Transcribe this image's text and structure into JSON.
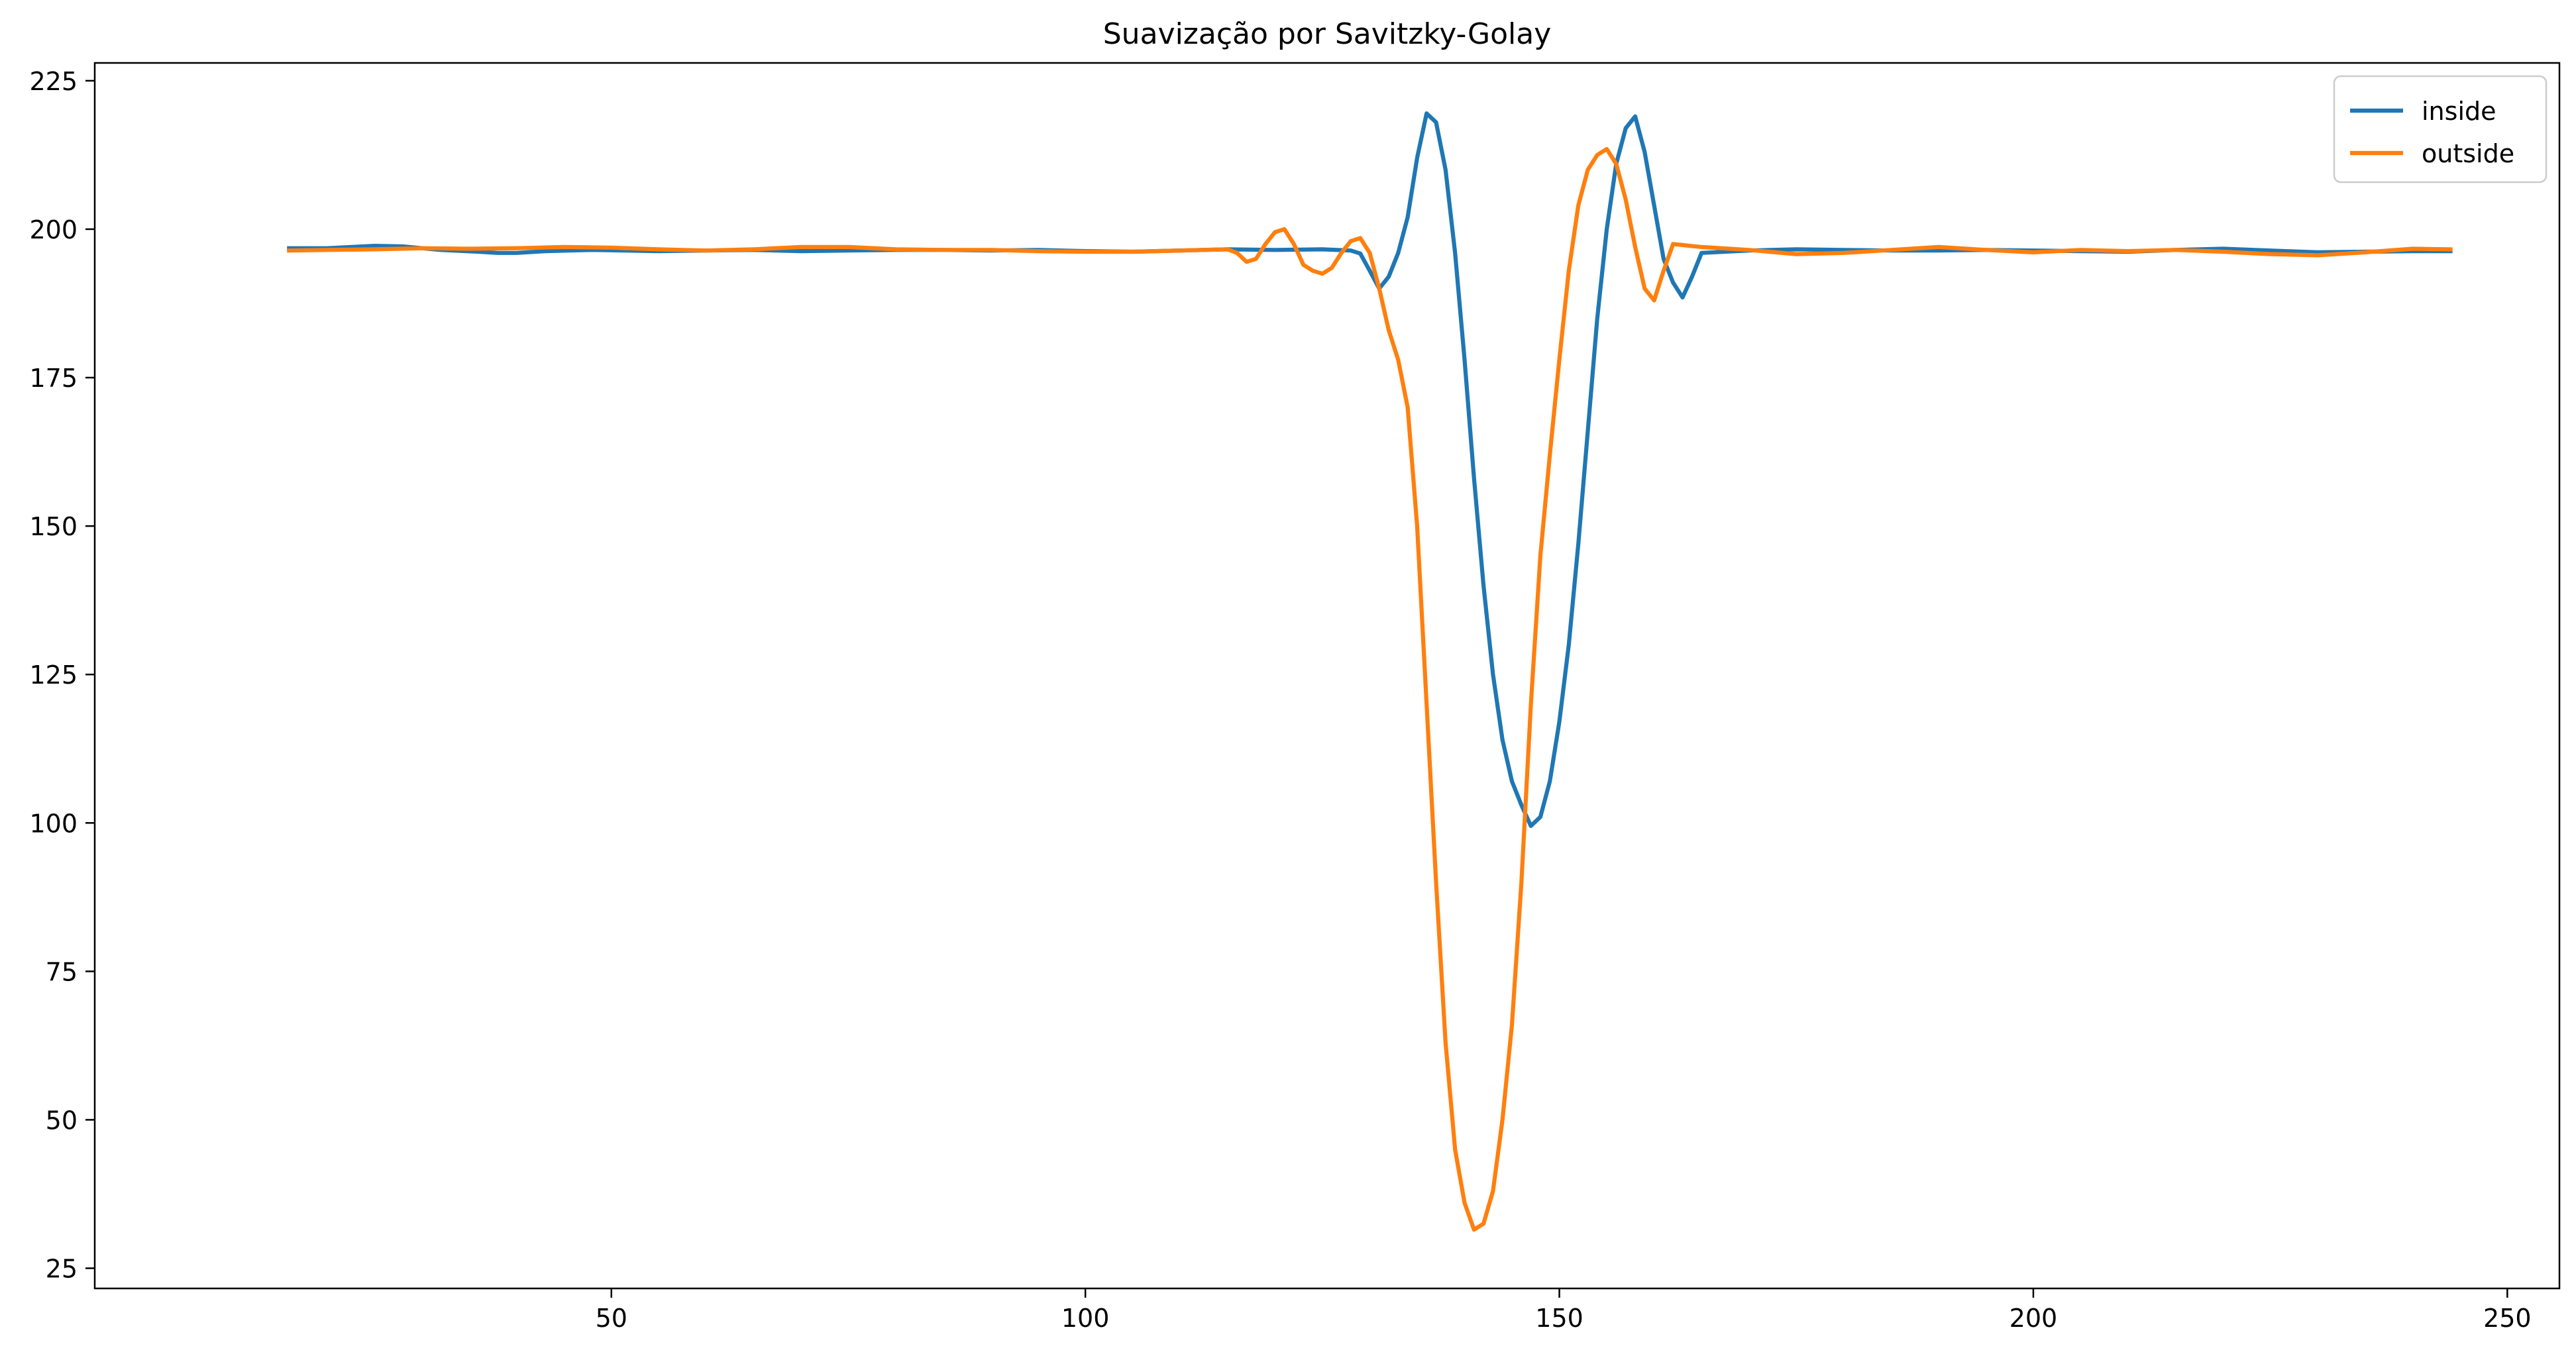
{
  "chart_data": {
    "type": "line",
    "title": "Suavização por Savitzky-Golay",
    "xlabel": "",
    "ylabel": "",
    "xlim": [
      -4.5,
      255.5
    ],
    "ylim": [
      21.6,
      228.0
    ],
    "xticks": [
      50,
      100,
      150,
      200,
      250
    ],
    "yticks": [
      25,
      50,
      75,
      100,
      125,
      150,
      175,
      200,
      225
    ],
    "grid": false,
    "legend_position": "top-right",
    "colors": {
      "inside": "#1f77b4",
      "outside": "#ff7f0e",
      "axis": "#000000"
    },
    "series": [
      {
        "name": "inside",
        "color": "#1f77b4",
        "points": [
          [
            16,
            196.8
          ],
          [
            20,
            196.8
          ],
          [
            25,
            197.2
          ],
          [
            28,
            197.1
          ],
          [
            32,
            196.5
          ],
          [
            36,
            196.2
          ],
          [
            38,
            196.0
          ],
          [
            40,
            196.0
          ],
          [
            43,
            196.3
          ],
          [
            48,
            196.5
          ],
          [
            55,
            196.3
          ],
          [
            60,
            196.4
          ],
          [
            65,
            196.5
          ],
          [
            70,
            196.3
          ],
          [
            75,
            196.4
          ],
          [
            80,
            196.5
          ],
          [
            85,
            196.5
          ],
          [
            90,
            196.4
          ],
          [
            95,
            196.5
          ],
          [
            100,
            196.3
          ],
          [
            105,
            196.2
          ],
          [
            110,
            196.4
          ],
          [
            115,
            196.6
          ],
          [
            120,
            196.5
          ],
          [
            125,
            196.6
          ],
          [
            128,
            196.4
          ],
          [
            129,
            195.9
          ],
          [
            130,
            193.0
          ],
          [
            131,
            190.0
          ],
          [
            132,
            192.0
          ],
          [
            133,
            196.0
          ],
          [
            134,
            202.0
          ],
          [
            135,
            212.0
          ],
          [
            136,
            219.5
          ],
          [
            137,
            218.0
          ],
          [
            138,
            210.0
          ],
          [
            139,
            196.0
          ],
          [
            140,
            178.0
          ],
          [
            141,
            158.0
          ],
          [
            142,
            140.0
          ],
          [
            143,
            125.0
          ],
          [
            144,
            114.0
          ],
          [
            145,
            107.0
          ],
          [
            146,
            103.0
          ],
          [
            147,
            99.5
          ],
          [
            148,
            101.0
          ],
          [
            149,
            107.0
          ],
          [
            150,
            117.0
          ],
          [
            151,
            130.0
          ],
          [
            152,
            147.0
          ],
          [
            153,
            166.0
          ],
          [
            154,
            185.0
          ],
          [
            155,
            200.0
          ],
          [
            156,
            211.0
          ],
          [
            157,
            217.0
          ],
          [
            158,
            219.0
          ],
          [
            159,
            213.0
          ],
          [
            160,
            204.0
          ],
          [
            161,
            195.0
          ],
          [
            162,
            191.0
          ],
          [
            163,
            188.5
          ],
          [
            164,
            192.0
          ],
          [
            165,
            196.0
          ],
          [
            170,
            196.4
          ],
          [
            175,
            196.6
          ],
          [
            180,
            196.5
          ],
          [
            185,
            196.4
          ],
          [
            190,
            196.4
          ],
          [
            195,
            196.5
          ],
          [
            200,
            196.4
          ],
          [
            205,
            196.3
          ],
          [
            210,
            196.2
          ],
          [
            215,
            196.5
          ],
          [
            220,
            196.7
          ],
          [
            225,
            196.4
          ],
          [
            230,
            196.1
          ],
          [
            235,
            196.2
          ],
          [
            240,
            196.3
          ],
          [
            244,
            196.3
          ]
        ]
      },
      {
        "name": "outside",
        "color": "#ff7f0e",
        "points": [
          [
            16,
            196.4
          ],
          [
            20,
            196.5
          ],
          [
            25,
            196.6
          ],
          [
            30,
            196.8
          ],
          [
            35,
            196.7
          ],
          [
            40,
            196.8
          ],
          [
            45,
            197.0
          ],
          [
            50,
            196.9
          ],
          [
            55,
            196.6
          ],
          [
            60,
            196.4
          ],
          [
            65,
            196.6
          ],
          [
            70,
            197.0
          ],
          [
            75,
            197.0
          ],
          [
            80,
            196.6
          ],
          [
            85,
            196.5
          ],
          [
            90,
            196.5
          ],
          [
            95,
            196.3
          ],
          [
            100,
            196.2
          ],
          [
            105,
            196.2
          ],
          [
            110,
            196.4
          ],
          [
            115,
            196.6
          ],
          [
            116,
            196.0
          ],
          [
            117,
            194.5
          ],
          [
            118,
            195.0
          ],
          [
            119,
            197.5
          ],
          [
            120,
            199.5
          ],
          [
            121,
            200.0
          ],
          [
            122,
            197.5
          ],
          [
            123,
            194.0
          ],
          [
            124,
            193.0
          ],
          [
            125,
            192.5
          ],
          [
            126,
            193.5
          ],
          [
            127,
            196.0
          ],
          [
            128,
            198.0
          ],
          [
            129,
            198.5
          ],
          [
            130,
            196.0
          ],
          [
            131,
            190.0
          ],
          [
            132,
            183.0
          ],
          [
            133,
            178.0
          ],
          [
            134,
            170.0
          ],
          [
            135,
            150.0
          ],
          [
            136,
            120.0
          ],
          [
            137,
            90.0
          ],
          [
            138,
            63.0
          ],
          [
            139,
            45.0
          ],
          [
            140,
            36.0
          ],
          [
            141,
            31.5
          ],
          [
            142,
            32.5
          ],
          [
            143,
            38.0
          ],
          [
            144,
            50.0
          ],
          [
            145,
            66.0
          ],
          [
            146,
            90.0
          ],
          [
            147,
            120.0
          ],
          [
            148,
            145.0
          ],
          [
            149,
            162.0
          ],
          [
            150,
            178.0
          ],
          [
            151,
            193.0
          ],
          [
            152,
            204.0
          ],
          [
            153,
            210.0
          ],
          [
            154,
            212.5
          ],
          [
            155,
            213.5
          ],
          [
            156,
            211.0
          ],
          [
            157,
            205.0
          ],
          [
            158,
            197.0
          ],
          [
            159,
            190.0
          ],
          [
            160,
            188.0
          ],
          [
            161,
            193.0
          ],
          [
            162,
            197.5
          ],
          [
            165,
            197.0
          ],
          [
            170,
            196.5
          ],
          [
            175,
            195.8
          ],
          [
            180,
            196.0
          ],
          [
            185,
            196.5
          ],
          [
            190,
            197.0
          ],
          [
            195,
            196.5
          ],
          [
            200,
            196.1
          ],
          [
            205,
            196.5
          ],
          [
            210,
            196.3
          ],
          [
            215,
            196.5
          ],
          [
            220,
            196.2
          ],
          [
            225,
            195.8
          ],
          [
            230,
            195.6
          ],
          [
            235,
            196.1
          ],
          [
            240,
            196.7
          ],
          [
            244,
            196.6
          ]
        ]
      }
    ]
  }
}
